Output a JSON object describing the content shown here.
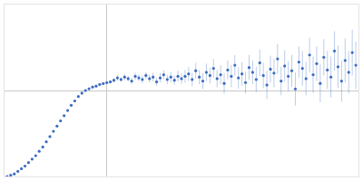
{
  "chart_data": {
    "type": "scatter",
    "x": [
      0.06,
      0.12,
      0.18,
      0.24,
      0.3,
      0.36,
      0.42,
      0.48,
      0.54,
      0.6,
      0.66,
      0.72,
      0.78,
      0.84,
      0.9,
      0.96,
      1.02,
      1.08,
      1.14,
      1.2,
      1.26,
      1.32,
      1.38,
      1.44,
      1.5,
      1.56,
      1.62,
      1.68,
      1.74,
      1.8,
      1.86,
      1.92,
      1.98,
      2.04,
      2.1,
      2.16,
      2.22,
      2.28,
      2.34,
      2.4,
      2.46,
      2.52,
      2.58,
      2.64,
      2.7,
      2.76,
      2.82,
      2.88,
      2.94,
      3.0,
      3.06,
      3.12,
      3.18,
      3.24,
      3.3,
      3.36,
      3.42,
      3.48,
      3.54,
      3.6,
      3.66,
      3.72,
      3.78,
      3.84,
      3.9,
      3.96,
      4.02,
      4.08,
      4.14,
      4.2,
      4.26,
      4.32,
      4.38,
      4.44,
      4.5,
      4.56,
      4.62,
      4.68,
      4.74,
      4.8,
      4.86,
      4.92,
      4.98,
      5.04,
      5.1,
      5.16,
      5.22,
      5.28,
      5.34,
      5.4,
      5.46,
      5.52,
      5.58,
      5.64,
      5.7,
      5.76,
      5.82,
      5.88,
      5.94
    ],
    "values": [
      0.011,
      0.028,
      0.044,
      0.077,
      0.11,
      0.143,
      0.187,
      0.231,
      0.275,
      0.33,
      0.385,
      0.451,
      0.517,
      0.583,
      0.649,
      0.715,
      0.781,
      0.847,
      0.913,
      0.968,
      1.023,
      1.067,
      1.1,
      1.122,
      1.144,
      1.155,
      1.177,
      1.188,
      1.199,
      1.21,
      1.23,
      1.26,
      1.24,
      1.27,
      1.25,
      1.22,
      1.28,
      1.26,
      1.24,
      1.29,
      1.25,
      1.27,
      1.21,
      1.26,
      1.3,
      1.24,
      1.27,
      1.23,
      1.28,
      1.25,
      1.28,
      1.31,
      1.24,
      1.35,
      1.27,
      1.22,
      1.33,
      1.29,
      1.38,
      1.25,
      1.3,
      1.19,
      1.36,
      1.28,
      1.42,
      1.26,
      1.31,
      1.2,
      1.39,
      1.33,
      1.24,
      1.45,
      1.29,
      1.17,
      1.37,
      1.32,
      1.5,
      1.22,
      1.41,
      1.28,
      1.35,
      1.12,
      1.46,
      1.38,
      1.25,
      1.55,
      1.3,
      1.44,
      1.19,
      1.52,
      1.36,
      1.27,
      1.6,
      1.4,
      1.22,
      1.48,
      1.33,
      1.58,
      1.42
    ],
    "errors": [
      0.005,
      0.005,
      0.005,
      0.005,
      0.005,
      0.005,
      0.005,
      0.005,
      0.005,
      0.005,
      0.008,
      0.008,
      0.008,
      0.008,
      0.008,
      0.008,
      0.008,
      0.008,
      0.008,
      0.008,
      0.012,
      0.012,
      0.012,
      0.012,
      0.012,
      0.012,
      0.012,
      0.012,
      0.012,
      0.012,
      0.03,
      0.035,
      0.03,
      0.04,
      0.035,
      0.04,
      0.045,
      0.04,
      0.05,
      0.045,
      0.05,
      0.055,
      0.05,
      0.06,
      0.055,
      0.06,
      0.065,
      0.06,
      0.07,
      0.065,
      0.08,
      0.09,
      0.085,
      0.1,
      0.09,
      0.1,
      0.11,
      0.1,
      0.12,
      0.11,
      0.12,
      0.13,
      0.12,
      0.14,
      0.13,
      0.14,
      0.15,
      0.14,
      0.16,
      0.15,
      0.16,
      0.17,
      0.16,
      0.18,
      0.17,
      0.18,
      0.19,
      0.18,
      0.2,
      0.19,
      0.2,
      0.21,
      0.2,
      0.22,
      0.21,
      0.22,
      0.23,
      0.22,
      0.24,
      0.23,
      0.24,
      0.26,
      0.25,
      0.27,
      0.26,
      0.28,
      0.27,
      0.29,
      0.3
    ],
    "reference_lines": {
      "x": 1.732,
      "y": 1.104
    },
    "color": "#3d6cc0",
    "marker": "circle",
    "xlim": [
      0,
      6
    ],
    "ylim": [
      0,
      2.2
    ],
    "tick_labels": false,
    "grid": false
  }
}
